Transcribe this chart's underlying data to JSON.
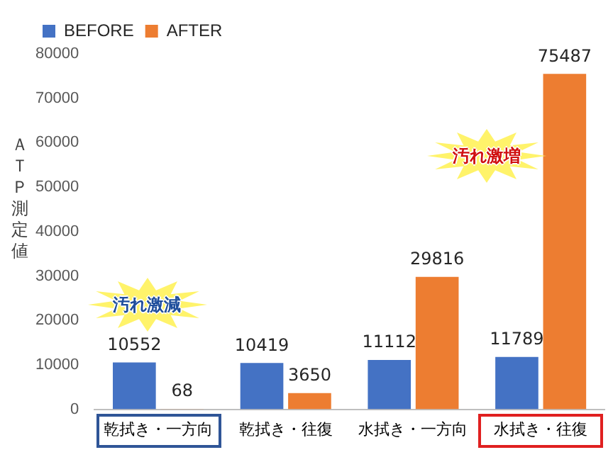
{
  "chart_data": {
    "type": "bar",
    "ylabel": "ＡＴＰ測定値",
    "categories": [
      "乾拭き・一方向",
      "乾拭き・往復",
      "水拭き・一方向",
      "水拭き・往復"
    ],
    "series": [
      {
        "name": "BEFORE",
        "color": "#4472c4",
        "values": [
          10552,
          10419,
          11112,
          11789
        ]
      },
      {
        "name": "AFTER",
        "color": "#ed7d31",
        "values": [
          68,
          3650,
          29816,
          75487
        ]
      }
    ],
    "ylim": [
      0,
      80000
    ],
    "yticks": [
      0,
      10000,
      20000,
      30000,
      40000,
      50000,
      60000,
      70000,
      80000
    ],
    "grid": false,
    "legend": "top left",
    "data_labels": true,
    "annotations": [
      "汚れ激減",
      "汚れ激増"
    ]
  }
}
